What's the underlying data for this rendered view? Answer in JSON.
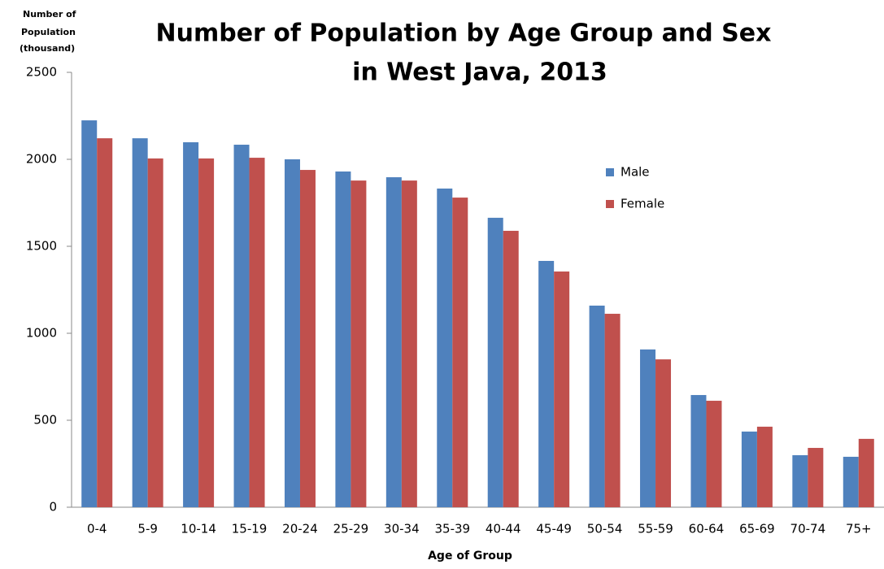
{
  "chart_data": {
    "type": "bar",
    "title": [
      "Number of Population by Age Group and Sex",
      "in West Java, 2013"
    ],
    "y_label": [
      "Number of",
      "Population",
      "(thousand)"
    ],
    "x_label": "Age of Group",
    "categories": [
      "0-4",
      "5-9",
      "10-14",
      "15-19",
      "20-24",
      "25-29",
      "30-34",
      "35-39",
      "40-44",
      "45-49",
      "50-54",
      "55-59",
      "60-64",
      "65-69",
      "70-74",
      "75+"
    ],
    "series": [
      {
        "name": "Male",
        "color": "#4f81bd",
        "values": [
          2224,
          2121,
          2098,
          2084,
          2000,
          1930,
          1897,
          1832,
          1664,
          1416,
          1159,
          907,
          645,
          435,
          299,
          290
        ]
      },
      {
        "name": "Female",
        "color": "#c0504d",
        "values": [
          2121,
          2005,
          2005,
          2009,
          1939,
          1878,
          1878,
          1780,
          1589,
          1355,
          1112,
          850,
          612,
          463,
          341,
          393
        ]
      }
    ],
    "ylim": [
      0,
      2500
    ],
    "yticks": [
      0,
      500,
      1000,
      1500,
      2000,
      2500
    ],
    "grid": false,
    "legend": "upper right"
  }
}
